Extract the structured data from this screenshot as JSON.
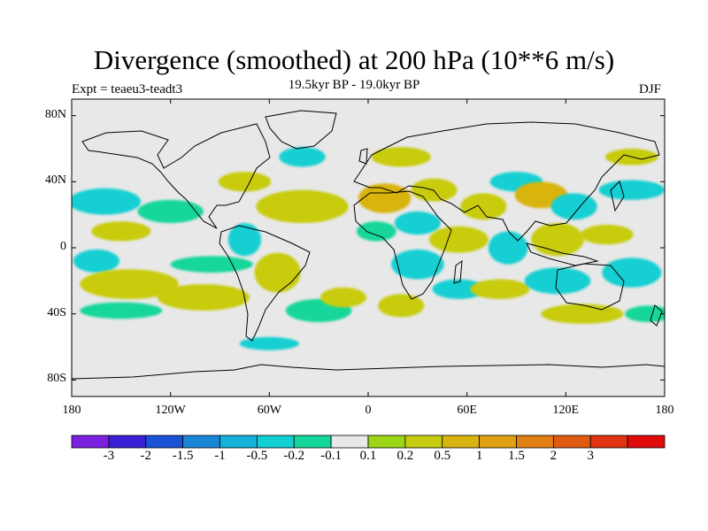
{
  "title": "Divergence (smoothed) at 200 hPa (10**6 m/s)",
  "subtitle": "19.5kyr BP - 19.0kyr BP",
  "experiment": "Expt = teaeu3-teadt3",
  "season": "DJF",
  "map": {
    "projection": "cylindrical-equidistant",
    "lon_range": [
      -180,
      180
    ],
    "lat_range": [
      -90,
      90
    ],
    "background_color": "#e8e8e8",
    "lat_ticks": [
      {
        "value": 80,
        "label": "80N"
      },
      {
        "value": 40,
        "label": "40N"
      },
      {
        "value": 0,
        "label": "0"
      },
      {
        "value": -40,
        "label": "40S"
      },
      {
        "value": -80,
        "label": "80S"
      }
    ],
    "lon_ticks": [
      {
        "value": -180,
        "label": "180"
      },
      {
        "value": -120,
        "label": "120W"
      },
      {
        "value": -60,
        "label": "60W"
      },
      {
        "value": 0,
        "label": "0"
      },
      {
        "value": 60,
        "label": "60E"
      },
      {
        "value": 120,
        "label": "120E"
      },
      {
        "value": 180,
        "label": "180"
      }
    ]
  },
  "colorbar": {
    "colors": [
      "#7b1fe0",
      "#3a1fd6",
      "#1a52d6",
      "#1a86d6",
      "#13b2db",
      "#12cfd2",
      "#13d69a",
      "#e8e8e8",
      "#9ad616",
      "#c8cc10",
      "#d9b410",
      "#e0a012",
      "#e07f12",
      "#e05a12",
      "#e03412",
      "#e00a0a"
    ],
    "labels": [
      "-3",
      "-2",
      "-1.5",
      "-1",
      "-0.5",
      "-0.2",
      "-0.1",
      "0.1",
      "0.2",
      "0.5",
      "1",
      "1.5",
      "2",
      "3"
    ]
  },
  "chart_data": {
    "type": "filled-contour-map",
    "variable": "Divergence (smoothed) at 200 hPa",
    "units": "10**6 m/s",
    "levels": [
      -3,
      -2,
      -1.5,
      -1,
      -0.5,
      -0.2,
      -0.1,
      0.1,
      0.2,
      0.5,
      1,
      1.5,
      2,
      3
    ],
    "blobs": [
      {
        "lon": -160,
        "lat": 28,
        "rx": 22,
        "ry": 8,
        "value": -0.3
      },
      {
        "lon": -150,
        "lat": 10,
        "rx": 18,
        "ry": 6,
        "value": 0.2
      },
      {
        "lon": -165,
        "lat": -8,
        "rx": 14,
        "ry": 7,
        "value": -0.3
      },
      {
        "lon": -145,
        "lat": -22,
        "rx": 30,
        "ry": 9,
        "value": 0.3
      },
      {
        "lon": -150,
        "lat": -38,
        "rx": 25,
        "ry": 5,
        "value": -0.2
      },
      {
        "lon": -120,
        "lat": 22,
        "rx": 20,
        "ry": 7,
        "value": -0.2
      },
      {
        "lon": -100,
        "lat": -30,
        "rx": 28,
        "ry": 8,
        "value": 0.25
      },
      {
        "lon": -95,
        "lat": -10,
        "rx": 25,
        "ry": 5,
        "value": -0.15
      },
      {
        "lon": -75,
        "lat": 40,
        "rx": 16,
        "ry": 6,
        "value": 0.2
      },
      {
        "lon": -75,
        "lat": 5,
        "rx": 10,
        "ry": 10,
        "value": -0.3
      },
      {
        "lon": -55,
        "lat": -15,
        "rx": 14,
        "ry": 12,
        "value": 0.25
      },
      {
        "lon": -40,
        "lat": 25,
        "rx": 28,
        "ry": 10,
        "value": 0.4
      },
      {
        "lon": -40,
        "lat": 55,
        "rx": 14,
        "ry": 6,
        "value": -0.3
      },
      {
        "lon": -30,
        "lat": -38,
        "rx": 20,
        "ry": 7,
        "value": -0.2
      },
      {
        "lon": -60,
        "lat": -58,
        "rx": 18,
        "ry": 4,
        "value": -0.3
      },
      {
        "lon": -15,
        "lat": -30,
        "rx": 14,
        "ry": 6,
        "value": 0.3
      },
      {
        "lon": 5,
        "lat": 10,
        "rx": 12,
        "ry": 6,
        "value": -0.2
      },
      {
        "lon": 10,
        "lat": 30,
        "rx": 16,
        "ry": 9,
        "value": 0.5
      },
      {
        "lon": 20,
        "lat": 55,
        "rx": 18,
        "ry": 6,
        "value": 0.3
      },
      {
        "lon": 30,
        "lat": 15,
        "rx": 14,
        "ry": 7,
        "value": -0.4
      },
      {
        "lon": 30,
        "lat": -10,
        "rx": 16,
        "ry": 9,
        "value": -0.3
      },
      {
        "lon": 20,
        "lat": -35,
        "rx": 14,
        "ry": 7,
        "value": 0.3
      },
      {
        "lon": 40,
        "lat": 35,
        "rx": 14,
        "ry": 7,
        "value": 0.4
      },
      {
        "lon": 55,
        "lat": 5,
        "rx": 18,
        "ry": 8,
        "value": 0.3
      },
      {
        "lon": 55,
        "lat": -25,
        "rx": 16,
        "ry": 6,
        "value": -0.3
      },
      {
        "lon": 70,
        "lat": 25,
        "rx": 14,
        "ry": 8,
        "value": 0.25
      },
      {
        "lon": 85,
        "lat": 0,
        "rx": 12,
        "ry": 10,
        "value": -0.4
      },
      {
        "lon": 80,
        "lat": -25,
        "rx": 18,
        "ry": 6,
        "value": 0.2
      },
      {
        "lon": 90,
        "lat": 40,
        "rx": 16,
        "ry": 6,
        "value": -0.25
      },
      {
        "lon": 105,
        "lat": 32,
        "rx": 16,
        "ry": 8,
        "value": 0.5
      },
      {
        "lon": 115,
        "lat": 5,
        "rx": 16,
        "ry": 10,
        "value": 0.3
      },
      {
        "lon": 115,
        "lat": -20,
        "rx": 20,
        "ry": 8,
        "value": -0.4
      },
      {
        "lon": 125,
        "lat": 25,
        "rx": 14,
        "ry": 8,
        "value": -0.4
      },
      {
        "lon": 130,
        "lat": -40,
        "rx": 25,
        "ry": 6,
        "value": 0.3
      },
      {
        "lon": 145,
        "lat": 8,
        "rx": 16,
        "ry": 6,
        "value": 0.4
      },
      {
        "lon": 160,
        "lat": -15,
        "rx": 18,
        "ry": 9,
        "value": -0.35
      },
      {
        "lon": 160,
        "lat": 35,
        "rx": 20,
        "ry": 6,
        "value": -0.3
      },
      {
        "lon": 160,
        "lat": 55,
        "rx": 16,
        "ry": 5,
        "value": 0.3
      },
      {
        "lon": 170,
        "lat": -40,
        "rx": 14,
        "ry": 5,
        "value": -0.2
      }
    ]
  }
}
